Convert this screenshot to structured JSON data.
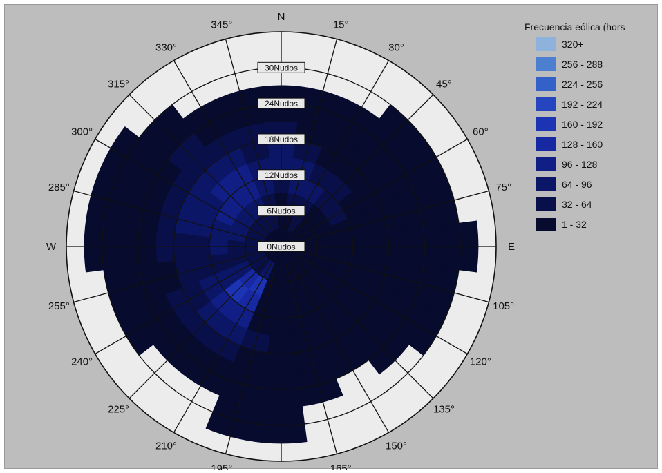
{
  "chart_data": {
    "type": "wind-rose",
    "legend_title": "Frecuencia eólica (hors",
    "directions": [
      "N",
      "15°",
      "30°",
      "45°",
      "60°",
      "75°",
      "E",
      "105°",
      "120°",
      "135°",
      "150°",
      "165°",
      "S",
      "195°",
      "210°",
      "225°",
      "240°",
      "255°",
      "W",
      "285°",
      "300°",
      "315°",
      "330°",
      "345°"
    ],
    "direction_angles": [
      0,
      15,
      30,
      45,
      60,
      75,
      90,
      105,
      120,
      135,
      150,
      165,
      180,
      195,
      210,
      225,
      240,
      255,
      270,
      285,
      300,
      315,
      330,
      345
    ],
    "speed_ring_labels": [
      "0Nudos",
      "6Nudos",
      "12Nudos",
      "18Nudos",
      "24Nudos",
      "30Nudos"
    ],
    "speed_ring_values": [
      0,
      6,
      12,
      18,
      24,
      30
    ],
    "speed_max": 36,
    "speed_bin_width": 3,
    "legend": [
      {
        "label": "320+",
        "color": "#8fb2dc"
      },
      {
        "label": "256 - 288",
        "color": "#4d7fd0"
      },
      {
        "label": "224 - 256",
        "color": "#3461c9"
      },
      {
        "label": "192 - 224",
        "color": "#2545be"
      },
      {
        "label": "160 - 192",
        "color": "#1c33b3"
      },
      {
        "label": "128 - 160",
        "color": "#1628a2"
      },
      {
        "label": "96 - 128",
        "color": "#111e85"
      },
      {
        "label": "64 - 96",
        "color": "#0c1666"
      },
      {
        "label": "32 - 64",
        "color": "#091049"
      },
      {
        "label": "1 - 32",
        "color": "#070b2e"
      }
    ],
    "frequency_class_per_sector": [
      [
        1,
        1,
        1,
        2,
        3,
        3,
        2,
        1,
        1,
        0,
        0,
        0
      ],
      [
        1,
        1,
        2,
        3,
        3,
        2,
        1,
        1,
        1,
        0,
        0,
        0
      ],
      [
        1,
        2,
        2,
        3,
        2,
        1,
        1,
        1,
        1,
        0,
        0,
        0
      ],
      [
        1,
        1,
        1,
        2,
        2,
        1,
        1,
        1,
        1,
        1,
        0,
        0
      ],
      [
        1,
        1,
        1,
        2,
        1,
        1,
        1,
        1,
        1,
        1,
        0,
        0
      ],
      [
        1,
        1,
        1,
        1,
        1,
        1,
        1,
        1,
        1,
        1,
        0,
        0
      ],
      [
        1,
        1,
        1,
        1,
        1,
        1,
        1,
        1,
        1,
        1,
        1,
        0
      ],
      [
        1,
        1,
        1,
        1,
        1,
        1,
        1,
        1,
        1,
        1,
        0,
        0
      ],
      [
        1,
        1,
        1,
        1,
        1,
        1,
        1,
        1,
        1,
        1,
        0,
        0
      ],
      [
        1,
        1,
        1,
        1,
        1,
        1,
        1,
        1,
        1,
        0,
        0,
        0
      ],
      [
        1,
        1,
        1,
        1,
        1,
        1,
        1,
        1,
        0,
        0,
        0,
        0
      ],
      [
        1,
        1,
        1,
        1,
        1,
        1,
        1,
        1,
        1,
        0,
        0,
        0
      ],
      [
        1,
        1,
        1,
        1,
        1,
        1,
        1,
        1,
        1,
        1,
        1,
        0
      ],
      [
        1,
        1,
        1,
        1,
        1,
        2,
        1,
        1,
        1,
        1,
        1,
        0
      ],
      [
        1,
        3,
        6,
        5,
        4,
        3,
        2,
        1,
        1,
        0,
        0,
        0
      ],
      [
        1,
        2,
        5,
        6,
        4,
        3,
        2,
        1,
        1,
        0,
        0,
        0
      ],
      [
        1,
        2,
        3,
        3,
        3,
        2,
        2,
        1,
        1,
        1,
        0,
        0
      ],
      [
        1,
        2,
        2,
        2,
        2,
        2,
        1,
        1,
        1,
        1,
        0,
        0
      ],
      [
        1,
        2,
        2,
        3,
        2,
        2,
        2,
        1,
        1,
        1,
        1,
        0
      ],
      [
        1,
        2,
        3,
        3,
        3,
        3,
        2,
        1,
        1,
        1,
        1,
        0
      ],
      [
        1,
        2,
        3,
        4,
        3,
        3,
        2,
        1,
        1,
        1,
        1,
        0
      ],
      [
        1,
        2,
        3,
        4,
        4,
        3,
        2,
        2,
        1,
        1,
        0,
        0
      ],
      [
        1,
        2,
        3,
        4,
        4,
        3,
        2,
        1,
        1,
        0,
        0,
        0
      ],
      [
        1,
        2,
        2,
        3,
        3,
        2,
        2,
        1,
        1,
        0,
        0,
        0
      ]
    ],
    "grid": true,
    "legend_position": "right"
  }
}
